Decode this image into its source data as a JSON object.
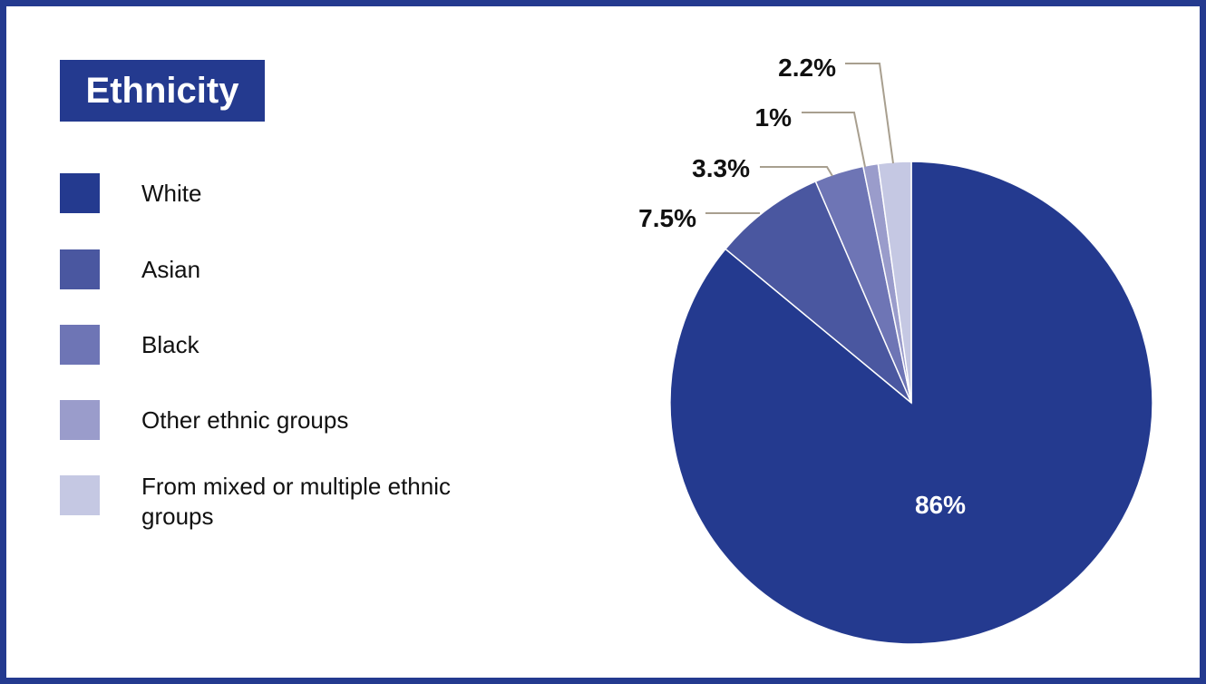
{
  "title": "Ethnicity",
  "colors": {
    "frame": "#243a8f",
    "leader_line": "#a89f8f"
  },
  "legend": [
    {
      "label": "White",
      "color": "#243a8f"
    },
    {
      "label": "Asian",
      "color": "#4a57a0"
    },
    {
      "label": "Black",
      "color": "#6e75b5"
    },
    {
      "label": "Other ethnic groups",
      "color": "#9a9ccb"
    },
    {
      "label": "From mixed or multiple ethnic groups",
      "color": "#c5c8e3"
    }
  ],
  "chart_data": {
    "type": "pie",
    "title": "Ethnicity",
    "categories": [
      "White",
      "Asian",
      "Black",
      "Other ethnic groups",
      "From mixed or multiple ethnic groups"
    ],
    "values": [
      86,
      7.5,
      3.3,
      1,
      2.2
    ],
    "data_labels": [
      "86%",
      "7.5%",
      "3.3%",
      "1%",
      "2.2%"
    ],
    "colors": [
      "#243a8f",
      "#4a57a0",
      "#6e75b5",
      "#9a9ccb",
      "#c5c8e3"
    ],
    "legend_placement": "left"
  }
}
